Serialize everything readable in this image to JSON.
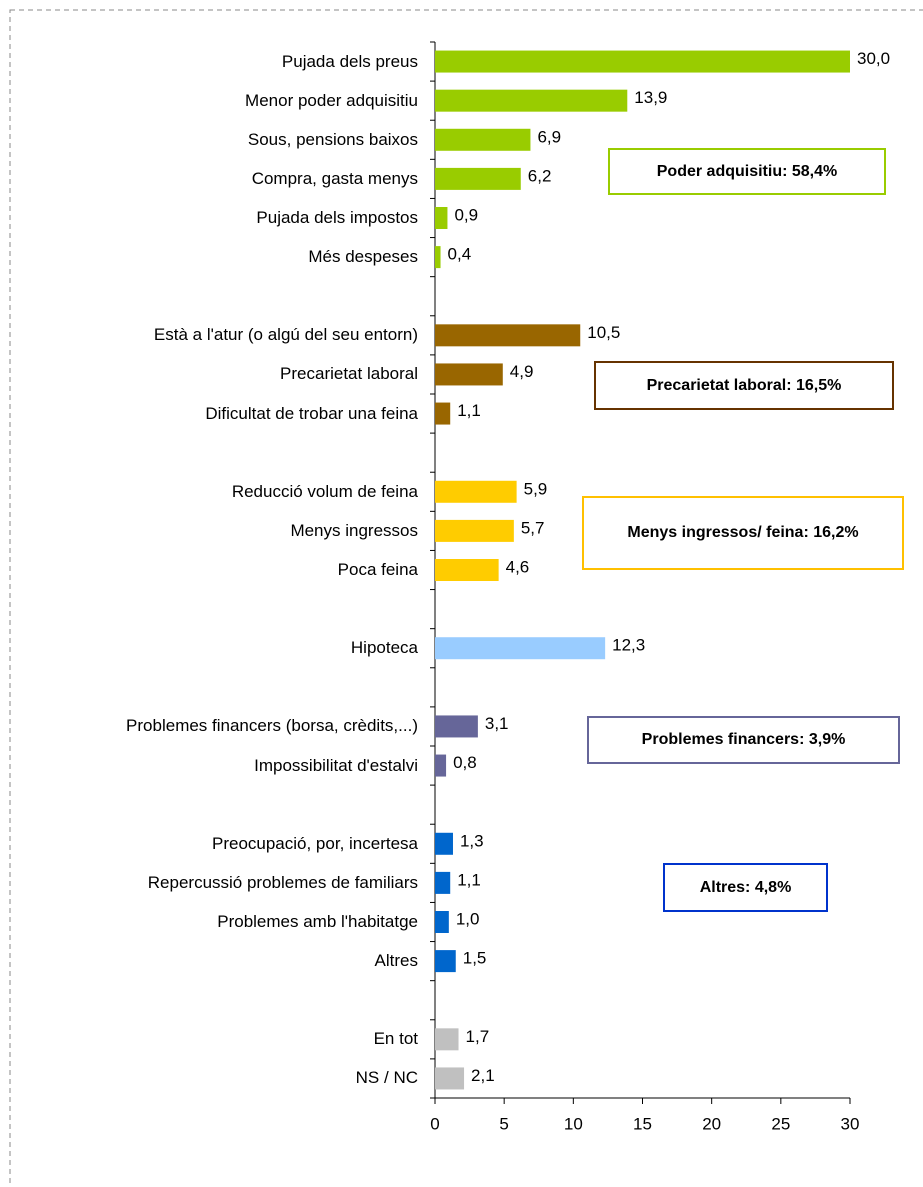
{
  "chart_data": {
    "type": "bar",
    "orientation": "horizontal",
    "categories": [
      "Pujada dels preus",
      "Menor poder adquisitiu",
      "Sous, pensions baixos",
      "Compra, gasta menys",
      "Pujada dels impostos",
      "Més despeses",
      null,
      "Està a l'atur (o algú del seu entorn)",
      "Precarietat laboral",
      "Dificultat de trobar una feina",
      null,
      "Reducció volum de feina",
      "Menys ingressos",
      "Poca feina",
      null,
      "Hipoteca",
      null,
      "Problemes financers (borsa, crèdits,...)",
      "Impossibilitat d'estalvi",
      null,
      "Preocupació, por, incertesa",
      "Repercussió problemes de familiars",
      "Problemes amb l'habitatge",
      "Altres",
      null,
      "En tot",
      "NS / NC"
    ],
    "values": [
      30.0,
      13.9,
      6.9,
      6.2,
      0.9,
      0.4,
      null,
      10.5,
      4.9,
      1.1,
      null,
      5.9,
      5.7,
      4.6,
      null,
      12.3,
      null,
      3.1,
      0.8,
      null,
      1.3,
      1.1,
      1.0,
      1.5,
      null,
      1.7,
      2.1
    ],
    "value_labels": [
      "30,0",
      "13,9",
      "6,9",
      "6,2",
      "0,9",
      "0,4",
      null,
      "10,5",
      "4,9",
      "1,1",
      null,
      "5,9",
      "5,7",
      "4,6",
      null,
      "12,3",
      null,
      "3,1",
      "0,8",
      null,
      "1,3",
      "1,1",
      "1,0",
      "1,5",
      null,
      "1,7",
      "2,1"
    ],
    "colors": [
      "#99cc00",
      "#99cc00",
      "#99cc00",
      "#99cc00",
      "#99cc00",
      "#99cc00",
      null,
      "#996600",
      "#996600",
      "#996600",
      null,
      "#ffcc00",
      "#ffcc00",
      "#ffcc00",
      null,
      "#99ccff",
      null,
      "#666699",
      "#666699",
      null,
      "#0066cc",
      "#0066cc",
      "#0066cc",
      "#0066cc",
      null,
      "#c0c0c0",
      "#c0c0c0"
    ],
    "xlim": [
      0,
      30
    ],
    "xticks": [
      0,
      5,
      10,
      15,
      20,
      25,
      30
    ],
    "annotations": [
      {
        "text": "Poder adquisitiu: 58,4%",
        "color": "#99cc00"
      },
      {
        "text": "Precarietat laboral: 16,5%",
        "color": "#663300"
      },
      {
        "text": "Menys ingressos/ feina: 16,2%",
        "color": "#ffc000"
      },
      {
        "text": "Problemes financers: 3,9%",
        "color": "#666699"
      },
      {
        "text": "Altres: 4,8%",
        "color": "#0033cc"
      }
    ]
  }
}
